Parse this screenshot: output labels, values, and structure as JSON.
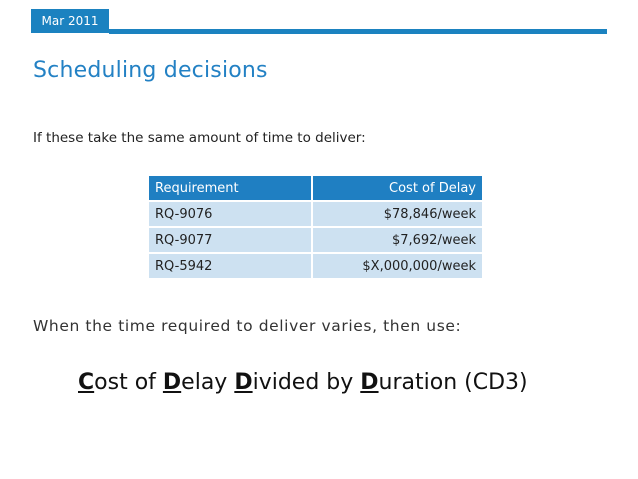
{
  "header": {
    "date": "Mar 2011"
  },
  "slide": {
    "title": "Scheduling decisions",
    "intro": "If these take the same amount of time to deliver:",
    "table": {
      "headers": [
        "Requirement",
        "Cost of Delay"
      ],
      "rows": [
        [
          "RQ-9076",
          "$78,846/week"
        ],
        [
          "RQ-9077",
          "$7,692/week"
        ],
        [
          "RQ-5942",
          "$X,000,000/week"
        ]
      ]
    },
    "vary_text": "When the time required to deliver varies, then use:",
    "cd3": {
      "w1_lead": "C",
      "w1_rest": "ost of",
      "w2_lead": "D",
      "w2_rest": "elay",
      "w3_lead": "D",
      "w3_rest": "ivided by",
      "w4_lead": "D",
      "w4_rest": "uration (CD3)"
    }
  },
  "colors": {
    "accent": "#1b82c0",
    "title": "#2381c4",
    "row_fill": "#cde1f1"
  }
}
